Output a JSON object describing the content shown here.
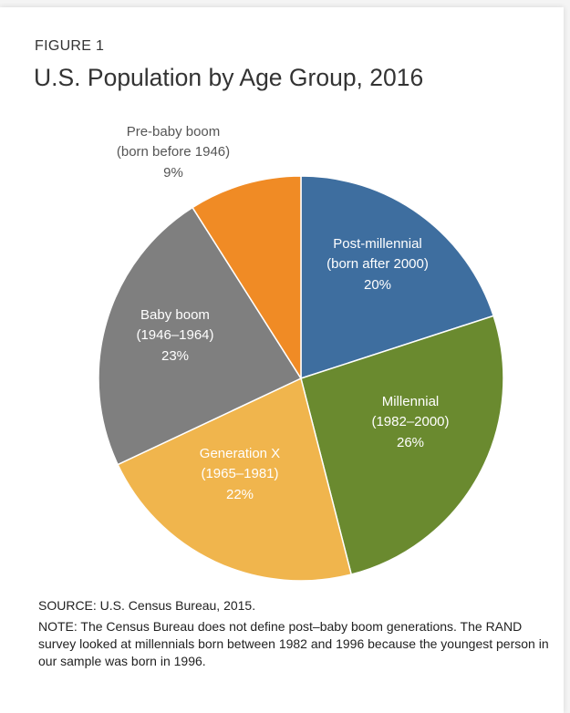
{
  "chart_data": {
    "type": "pie",
    "label": "FIGURE 1",
    "title": "U.S. Population by Age Group, 2016",
    "categories": [
      "Post-millennial",
      "Millennial",
      "Generation X",
      "Baby boom",
      "Pre-baby boom"
    ],
    "sublabels": [
      "(born after 2000)",
      "(1982–2000)",
      "(1965–1981)",
      "(1946–1964)",
      "(born before 1946)"
    ],
    "values": [
      20,
      26,
      22,
      23,
      9
    ],
    "value_labels": [
      "20%",
      "26%",
      "22%",
      "23%",
      "9%"
    ],
    "colors": [
      "#3e6e9f",
      "#6a8a2f",
      "#f0b54d",
      "#7f7f7f",
      "#f08b25"
    ],
    "source": "SOURCE: U.S. Census Bureau, 2015.",
    "note": "NOTE: The Census Bureau does not define post–baby boom generations. The RAND survey looked at millennials born between 1982 and 1996 because the youngest person in our sample was born in 1996."
  }
}
